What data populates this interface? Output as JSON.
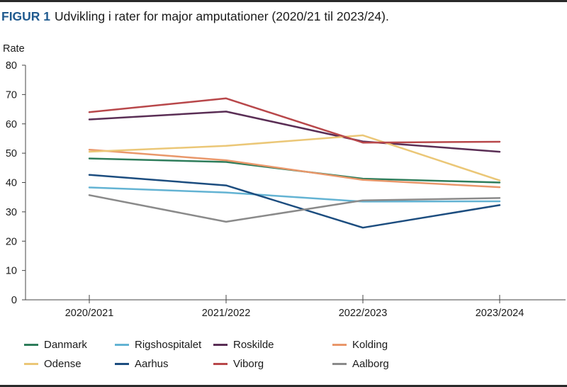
{
  "caption": {
    "label": "FIGUR 1",
    "text": "Udvikling i rater for major amputationer (2020/21 til 2023/24)."
  },
  "chart_data": {
    "type": "line",
    "title": "Udvikling i rater for major amputationer (2020/21 til 2023/24).",
    "xlabel": "",
    "ylabel": "Rate",
    "categories": [
      "2020/2021",
      "2021/2022",
      "2022/2023",
      "2023/2024"
    ],
    "ylim": [
      0,
      80
    ],
    "yticks": [
      0,
      10,
      20,
      30,
      40,
      50,
      60,
      70,
      80
    ],
    "grid": false,
    "legend_position": "bottom",
    "series": [
      {
        "name": "Danmark",
        "color": "#2e7d5b",
        "values": [
          48.2,
          47.0,
          41.3,
          40.0
        ]
      },
      {
        "name": "Rigshospitalet",
        "color": "#63b3d3",
        "values": [
          38.3,
          36.6,
          33.5,
          33.6
        ]
      },
      {
        "name": "Roskilde",
        "color": "#5a2e55",
        "values": [
          61.5,
          64.2,
          54.0,
          50.5
        ]
      },
      {
        "name": "Kolding",
        "color": "#e9976a",
        "values": [
          51.2,
          47.6,
          40.9,
          38.4
        ]
      },
      {
        "name": "Odense",
        "color": "#ebc777",
        "values": [
          50.5,
          52.5,
          56.1,
          40.7
        ]
      },
      {
        "name": "Aarhus",
        "color": "#1c4d7f",
        "values": [
          42.6,
          39.0,
          24.6,
          32.3
        ]
      },
      {
        "name": "Viborg",
        "color": "#b8474a",
        "values": [
          64.0,
          68.7,
          53.6,
          53.9
        ]
      },
      {
        "name": "Aalborg",
        "color": "#8a8a8a",
        "values": [
          35.7,
          26.6,
          33.9,
          34.7
        ]
      }
    ]
  }
}
